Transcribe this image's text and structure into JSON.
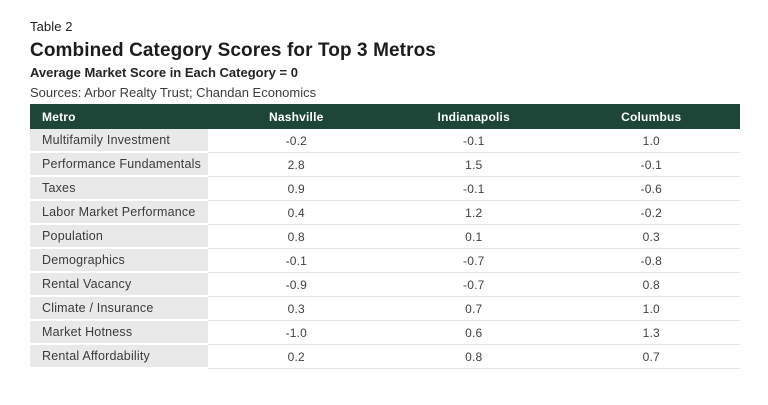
{
  "header": {
    "kicker": "Table 2",
    "title": "Combined Category Scores for Top 3 Metros",
    "subtitle": "Average Market Score in Each Category = 0",
    "sources": "Sources: Arbor Realty Trust; Chandan Economics"
  },
  "colors": {
    "header_bg": "#1d4639",
    "header_text": "#ffffff",
    "label_column_bg": "#e9e9e9",
    "row_divider": "#e4e4e4",
    "body_text": "#3f3f3f"
  },
  "table": {
    "columns": [
      "Metro",
      "Nashville",
      "Indianapolis",
      "Columbus"
    ],
    "rows": [
      {
        "label": "Multifamily Investment",
        "values": [
          "-0.2",
          "-0.1",
          "1.0"
        ]
      },
      {
        "label": "Performance Fundamentals",
        "values": [
          "2.8",
          "1.5",
          "-0.1"
        ]
      },
      {
        "label": "Taxes",
        "values": [
          "0.9",
          "-0.1",
          "-0.6"
        ]
      },
      {
        "label": "Labor Market Performance",
        "values": [
          "0.4",
          "1.2",
          "-0.2"
        ]
      },
      {
        "label": "Population",
        "values": [
          "0.8",
          "0.1",
          "0.3"
        ]
      },
      {
        "label": "Demographics",
        "values": [
          "-0.1",
          "-0.7",
          "-0.8"
        ]
      },
      {
        "label": "Rental Vacancy",
        "values": [
          "-0.9",
          "-0.7",
          "0.8"
        ]
      },
      {
        "label": "Climate / Insurance",
        "values": [
          "0.3",
          "0.7",
          "1.0"
        ]
      },
      {
        "label": "Market Hotness",
        "values": [
          "-1.0",
          "0.6",
          "1.3"
        ]
      },
      {
        "label": "Rental Affordability",
        "values": [
          "0.2",
          "0.8",
          "0.7"
        ]
      }
    ]
  },
  "chart_data": {
    "type": "table",
    "title": "Combined Category Scores for Top 3 Metros",
    "subtitle": "Average Market Score in Each Category = 0",
    "sources": "Sources: Arbor Realty Trust; Chandan Economics",
    "categories": [
      "Multifamily Investment",
      "Performance Fundamentals",
      "Taxes",
      "Labor Market Performance",
      "Population",
      "Demographics",
      "Rental Vacancy",
      "Climate / Insurance",
      "Market Hotness",
      "Rental Affordability"
    ],
    "series": [
      {
        "name": "Nashville",
        "values": [
          -0.2,
          2.8,
          0.9,
          0.4,
          0.8,
          -0.1,
          -0.9,
          0.3,
          -1.0,
          0.2
        ]
      },
      {
        "name": "Indianapolis",
        "values": [
          -0.1,
          1.5,
          -0.1,
          1.2,
          0.1,
          -0.7,
          -0.7,
          0.7,
          0.6,
          0.8
        ]
      },
      {
        "name": "Columbus",
        "values": [
          1.0,
          -0.1,
          -0.6,
          -0.2,
          0.3,
          -0.8,
          0.8,
          1.0,
          1.3,
          0.7
        ]
      }
    ]
  }
}
